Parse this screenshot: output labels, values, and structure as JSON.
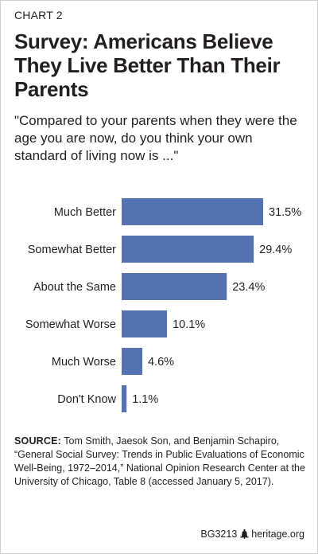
{
  "header": {
    "kicker": "CHART 2",
    "title": "Survey: Americans Believe They Live Better Than Their Parents",
    "subtitle": "\"Compared to your parents when they were the age you are now, do you think your own standard of living now is ...\""
  },
  "chart_data": {
    "type": "bar",
    "orientation": "horizontal",
    "categories": [
      "Much Better",
      "Somewhat Better",
      "About the Same",
      "Somewhat Worse",
      "Much Worse",
      "Don't Know"
    ],
    "values": [
      31.5,
      29.4,
      23.4,
      10.1,
      4.6,
      1.1
    ],
    "value_labels": [
      "31.5%",
      "29.4%",
      "23.4%",
      "10.1%",
      "4.6%",
      "1.1%"
    ],
    "unit": "%",
    "xlim": [
      0,
      31.5
    ],
    "grid": false,
    "legend": "none",
    "bar_color": "#5573b1"
  },
  "source": {
    "label": "SOURCE:",
    "text": "Tom Smith, Jaesok Son, and Benjamin Schapiro, “General Social Survey: Trends in Public Evaluations of Economic Well-Being, 1972–2014,” National Opinion Research Center at the University of Chicago, Table 8 (accessed January 5, 2017)."
  },
  "footer": {
    "code": "BG3213",
    "icon": "liberty-bell-icon",
    "site": "heritage.org"
  }
}
